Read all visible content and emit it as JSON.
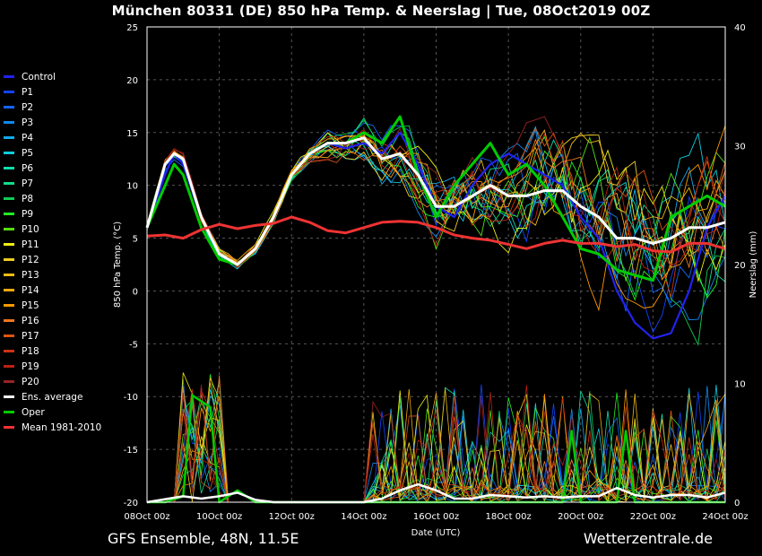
{
  "title": "München 80331 (DE)  850 hPa Temp. & Neerslag | Tue, 08Oct2019 00Z",
  "footer_left": "GFS Ensemble, 48N, 11.5E",
  "footer_right": "Wetterzentrale.de",
  "colors": {
    "background": "#000000",
    "grid": "#555555",
    "ens_average": "#ffffff",
    "oper": "#00cc00",
    "mean": "#ee3333"
  },
  "chart_data": {
    "type": "line",
    "xlabel": "Date (UTC)",
    "ylabel_left": "850 hPa Temp. (°C)",
    "ylabel_right": "Neerslag (mm)",
    "x_range_hours": [
      0,
      384
    ],
    "ylim_left": [
      -20,
      25
    ],
    "ylim_right": [
      0,
      40
    ],
    "yticks_left": [
      "25",
      "20",
      "15",
      "10",
      "5",
      "0",
      "-5",
      "-10",
      "-15",
      "-20"
    ],
    "yticks_right": [
      "40",
      "30",
      "20",
      "10",
      "0"
    ],
    "xticks": [
      "08Oct 00z",
      "10Oct 00z",
      "12Oct 00z",
      "14Oct 00z",
      "16Oct 00z",
      "18Oct 00z",
      "20Oct 00z",
      "22Oct 00z",
      "24Oct 00z"
    ],
    "grid": true,
    "legend_position": "left",
    "legend": [
      {
        "name": "Control",
        "color": "#2222ee"
      },
      {
        "name": "P1",
        "color": "#1144ff"
      },
      {
        "name": "P2",
        "color": "#1166ff"
      },
      {
        "name": "P3",
        "color": "#1188ee"
      },
      {
        "name": "P4",
        "color": "#11aaee"
      },
      {
        "name": "P5",
        "color": "#11ccdd"
      },
      {
        "name": "P6",
        "color": "#11ddaa"
      },
      {
        "name": "P7",
        "color": "#11dd88"
      },
      {
        "name": "P8",
        "color": "#11cc55"
      },
      {
        "name": "P9",
        "color": "#22ee22"
      },
      {
        "name": "P10",
        "color": "#55dd11"
      },
      {
        "name": "P11",
        "color": "#eeee11"
      },
      {
        "name": "P12",
        "color": "#eecc22"
      },
      {
        "name": "P13",
        "color": "#eebb11"
      },
      {
        "name": "P14",
        "color": "#eea811"
      },
      {
        "name": "P15",
        "color": "#ff9900"
      },
      {
        "name": "P16",
        "color": "#ee7722"
      },
      {
        "name": "P17",
        "color": "#dd5511"
      },
      {
        "name": "P18",
        "color": "#cc3311"
      },
      {
        "name": "P19",
        "color": "#bb2211"
      },
      {
        "name": "P20",
        "color": "#992222"
      },
      {
        "name": "Ens. average",
        "color": "#ffffff"
      },
      {
        "name": "Oper",
        "color": "#00cc00"
      },
      {
        "name": "Mean 1981-2010",
        "color": "#ee3333"
      }
    ],
    "series": [
      {
        "name": "Ens. average",
        "axis": "temp",
        "x": [
          0,
          12,
          18,
          24,
          36,
          48,
          60,
          72,
          84,
          96,
          108,
          120,
          132,
          144,
          156,
          168,
          180,
          192,
          204,
          216,
          228,
          240,
          252,
          264,
          276,
          288,
          300,
          312,
          324,
          336,
          348,
          360,
          372,
          384
        ],
        "y": [
          6,
          12,
          13,
          12.5,
          7,
          3.5,
          2.5,
          4,
          7,
          11,
          13,
          14,
          14,
          14.5,
          12.5,
          13,
          11,
          8,
          8,
          9,
          10,
          9,
          9,
          9.5,
          9.5,
          8,
          7,
          5,
          5,
          4.5,
          5,
          6,
          6,
          6.5
        ]
      },
      {
        "name": "Oper",
        "axis": "temp",
        "x": [
          0,
          12,
          18,
          24,
          36,
          48,
          60,
          72,
          84,
          96,
          108,
          120,
          132,
          144,
          156,
          168,
          180,
          192,
          204,
          216,
          228,
          240,
          252,
          264,
          276,
          288,
          300,
          312,
          324,
          336,
          348,
          360,
          372,
          384
        ],
        "y": [
          6,
          10,
          12,
          11,
          6,
          3,
          2.5,
          4,
          7,
          11,
          13,
          14,
          14,
          15,
          14,
          16.5,
          11,
          7,
          10,
          12,
          14,
          11,
          12,
          10,
          7,
          4,
          3.5,
          2,
          1.5,
          1,
          7,
          8,
          9,
          8
        ]
      },
      {
        "name": "Control",
        "axis": "temp",
        "x": [
          0,
          12,
          18,
          24,
          36,
          48,
          60,
          72,
          84,
          96,
          108,
          120,
          132,
          144,
          156,
          168,
          180,
          192,
          204,
          216,
          228,
          240,
          252,
          264,
          276,
          288,
          300,
          312,
          324,
          336,
          348,
          360,
          372,
          384
        ],
        "y": [
          6,
          11,
          13,
          12,
          7,
          3.5,
          2.5,
          4,
          7,
          11,
          13,
          14,
          13.5,
          14,
          13,
          15,
          12,
          8,
          7,
          10,
          12,
          13,
          12,
          11,
          10,
          7,
          5,
          0,
          -3,
          -4.5,
          -4,
          0,
          6,
          9
        ]
      },
      {
        "name": "Mean 1981-2010",
        "axis": "temp",
        "x": [
          0,
          12,
          24,
          36,
          48,
          60,
          72,
          84,
          96,
          108,
          120,
          132,
          144,
          156,
          168,
          180,
          192,
          204,
          216,
          228,
          240,
          252,
          264,
          276,
          288,
          300,
          312,
          324,
          336,
          348,
          360,
          372,
          384
        ],
        "y": [
          5.2,
          5.3,
          5.0,
          5.8,
          6.3,
          5.9,
          6.2,
          6.4,
          7.0,
          6.5,
          5.7,
          5.5,
          6.0,
          6.5,
          6.6,
          6.5,
          6.0,
          5.3,
          5.0,
          4.8,
          4.4,
          4.0,
          4.5,
          4.8,
          4.5,
          4.5,
          4.2,
          4.4,
          3.8,
          3.7,
          4.5,
          4.5,
          4.0
        ]
      },
      {
        "name": "Ens. average precipitation",
        "axis": "precip",
        "x": [
          0,
          24,
          36,
          48,
          60,
          72,
          84,
          96,
          108,
          120,
          132,
          144,
          156,
          168,
          180,
          192,
          204,
          216,
          228,
          240,
          252,
          264,
          276,
          288,
          300,
          312,
          324,
          336,
          348,
          360,
          372,
          384
        ],
        "y": [
          0,
          0.5,
          0.3,
          0.5,
          0.8,
          0.2,
          0,
          0,
          0,
          0,
          0,
          0,
          0.3,
          1.0,
          1.5,
          1.0,
          0.3,
          0.3,
          0.6,
          0.5,
          0.4,
          0.5,
          0.4,
          0.5,
          0.5,
          1.2,
          0.6,
          0.4,
          0.6,
          0.6,
          0.4,
          0.8
        ]
      },
      {
        "name": "Oper precipitation",
        "axis": "precip",
        "x": [
          0,
          12,
          24,
          30,
          36,
          42,
          48,
          60,
          72,
          84,
          96,
          108,
          120,
          132,
          144,
          156,
          168,
          180,
          192,
          204,
          216,
          228,
          240,
          252,
          264,
          276,
          282,
          288,
          294,
          300,
          312,
          318,
          324,
          336,
          348,
          360,
          372,
          384
        ],
        "y": [
          0,
          0,
          0.5,
          9,
          8.5,
          8,
          0,
          1,
          0,
          0,
          0,
          0,
          0,
          0,
          0,
          0,
          0,
          0,
          0,
          0,
          0,
          0,
          0,
          0,
          0,
          0,
          6,
          0,
          0,
          0,
          0,
          6,
          0,
          0,
          0,
          0,
          0,
          0
        ]
      }
    ]
  }
}
